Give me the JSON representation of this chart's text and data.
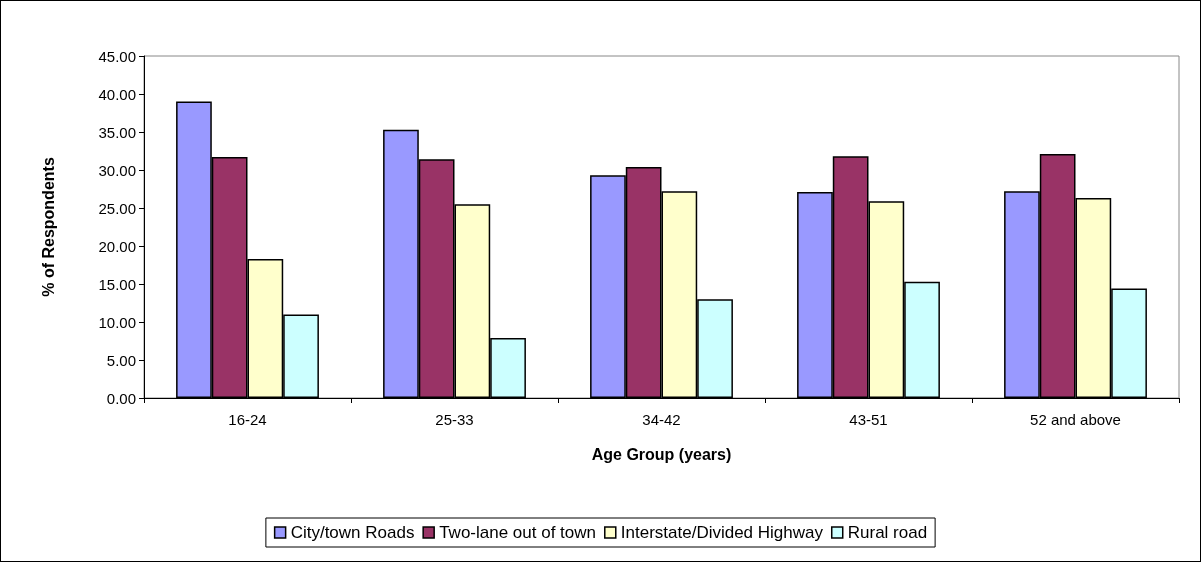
{
  "chart_data": {
    "type": "bar",
    "xlabel": "Age Group (years)",
    "ylabel": "% of Respondents",
    "categories": [
      "16-24",
      "25-33",
      "34-42",
      "43-51",
      "52 and above"
    ],
    "series": [
      {
        "name": "City/town Roads",
        "color": "#9999ff",
        "values": [
          39.0,
          35.3,
          29.3,
          27.1,
          27.2
        ]
      },
      {
        "name": "Two-lane out of town",
        "color": "#993366",
        "values": [
          31.7,
          31.4,
          30.4,
          31.8,
          32.1
        ]
      },
      {
        "name": "Interstate/Divided Highway",
        "color": "#ffffcc",
        "values": [
          18.3,
          25.5,
          27.2,
          25.9,
          26.3
        ]
      },
      {
        "name": "Rural road",
        "color": "#ccffff",
        "values": [
          11.0,
          7.9,
          13.0,
          15.3,
          14.4
        ]
      }
    ],
    "ylim": [
      0,
      45
    ],
    "yticks": [
      {
        "value": 0,
        "label": "0.00"
      },
      {
        "value": 5,
        "label": "5.00"
      },
      {
        "value": 10,
        "label": "10.00"
      },
      {
        "value": 15,
        "label": "15.00"
      },
      {
        "value": 20,
        "label": "20.00"
      },
      {
        "value": 25,
        "label": "25.00"
      },
      {
        "value": 30,
        "label": "30.00"
      },
      {
        "value": 35,
        "label": "35.00"
      },
      {
        "value": 40,
        "label": "40.00"
      },
      {
        "value": 45,
        "label": "45.00"
      }
    ],
    "grid": false,
    "legend": "bottom"
  }
}
